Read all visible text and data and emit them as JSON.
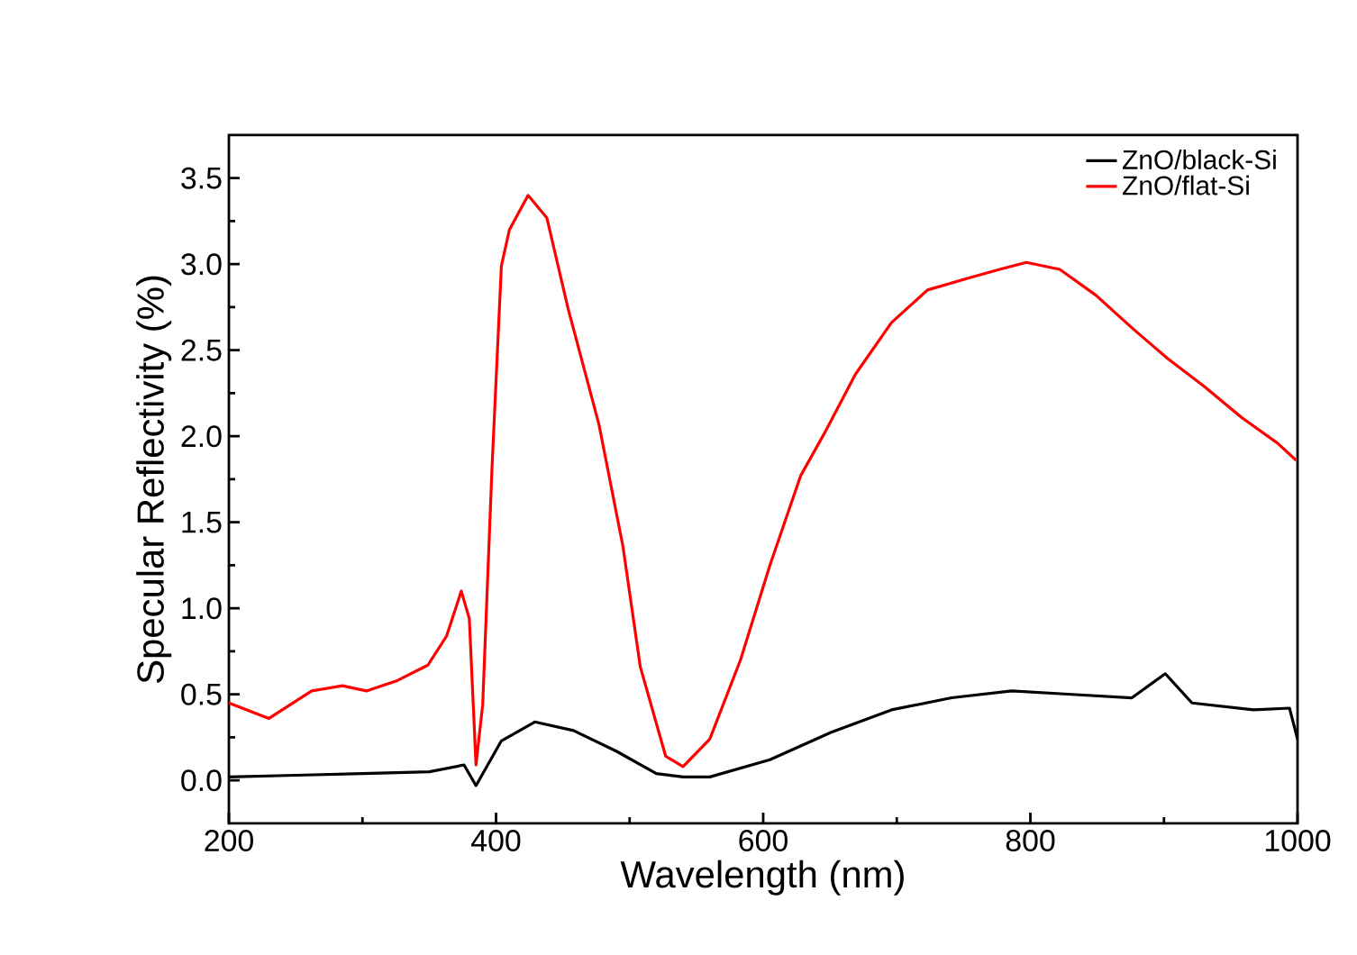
{
  "chart_data": {
    "type": "line",
    "xlabel": "Wavelength (nm)",
    "ylabel": "Specular Reflectivity (%)",
    "xlim": [
      200,
      1000
    ],
    "ylim": [
      -0.25,
      3.75
    ],
    "xticks": [
      200,
      400,
      600,
      800,
      1000
    ],
    "yticks": [
      {
        "value": 0,
        "label": "0.0"
      },
      0.5,
      {
        "value": 1,
        "label": "1.0"
      },
      1.5,
      {
        "value": 2,
        "label": "2.0"
      },
      2.5,
      {
        "value": 3,
        "label": "3.0"
      },
      3.5
    ],
    "legend": "top right",
    "grid": false,
    "marker": "none",
    "line_style": "solid",
    "series": [
      {
        "name": "ZnO/black-Si",
        "color": "#000000",
        "x": [
          200,
          250,
          300,
          350,
          376,
          385,
          404,
          429,
          458,
          490,
          520,
          540,
          560,
          605,
          651,
          696,
          741,
          786,
          831,
          876,
          901,
          921,
          967,
          994,
          1000
        ],
        "values": [
          0.02,
          0.03,
          0.04,
          0.05,
          0.09,
          -0.03,
          0.23,
          0.34,
          0.29,
          0.17,
          0.04,
          0.02,
          0.02,
          0.12,
          0.28,
          0.41,
          0.48,
          0.52,
          0.5,
          0.48,
          0.62,
          0.45,
          0.41,
          0.42,
          0.24
        ]
      },
      {
        "name": "ZnO/flat-Si",
        "color": "#ff0000",
        "x": [
          200,
          230,
          262,
          285,
          303,
          326,
          349,
          363,
          374,
          380,
          385,
          390,
          397,
          404,
          410,
          424,
          438,
          454,
          477,
          495,
          508,
          527,
          540,
          560,
          583,
          605,
          628,
          646,
          669,
          696,
          723,
          754,
          777,
          797,
          822,
          849,
          876,
          903,
          930,
          958,
          985,
          999
        ],
        "values": [
          0.45,
          0.36,
          0.52,
          0.55,
          0.52,
          0.58,
          0.67,
          0.84,
          1.1,
          0.94,
          0.09,
          0.44,
          1.82,
          2.99,
          3.2,
          3.4,
          3.27,
          2.74,
          2.07,
          1.36,
          0.66,
          0.14,
          0.08,
          0.24,
          0.7,
          1.25,
          1.77,
          2.02,
          2.36,
          2.66,
          2.85,
          2.92,
          2.97,
          3.01,
          2.97,
          2.82,
          2.63,
          2.45,
          2.29,
          2.11,
          1.96,
          1.86
        ]
      }
    ]
  }
}
